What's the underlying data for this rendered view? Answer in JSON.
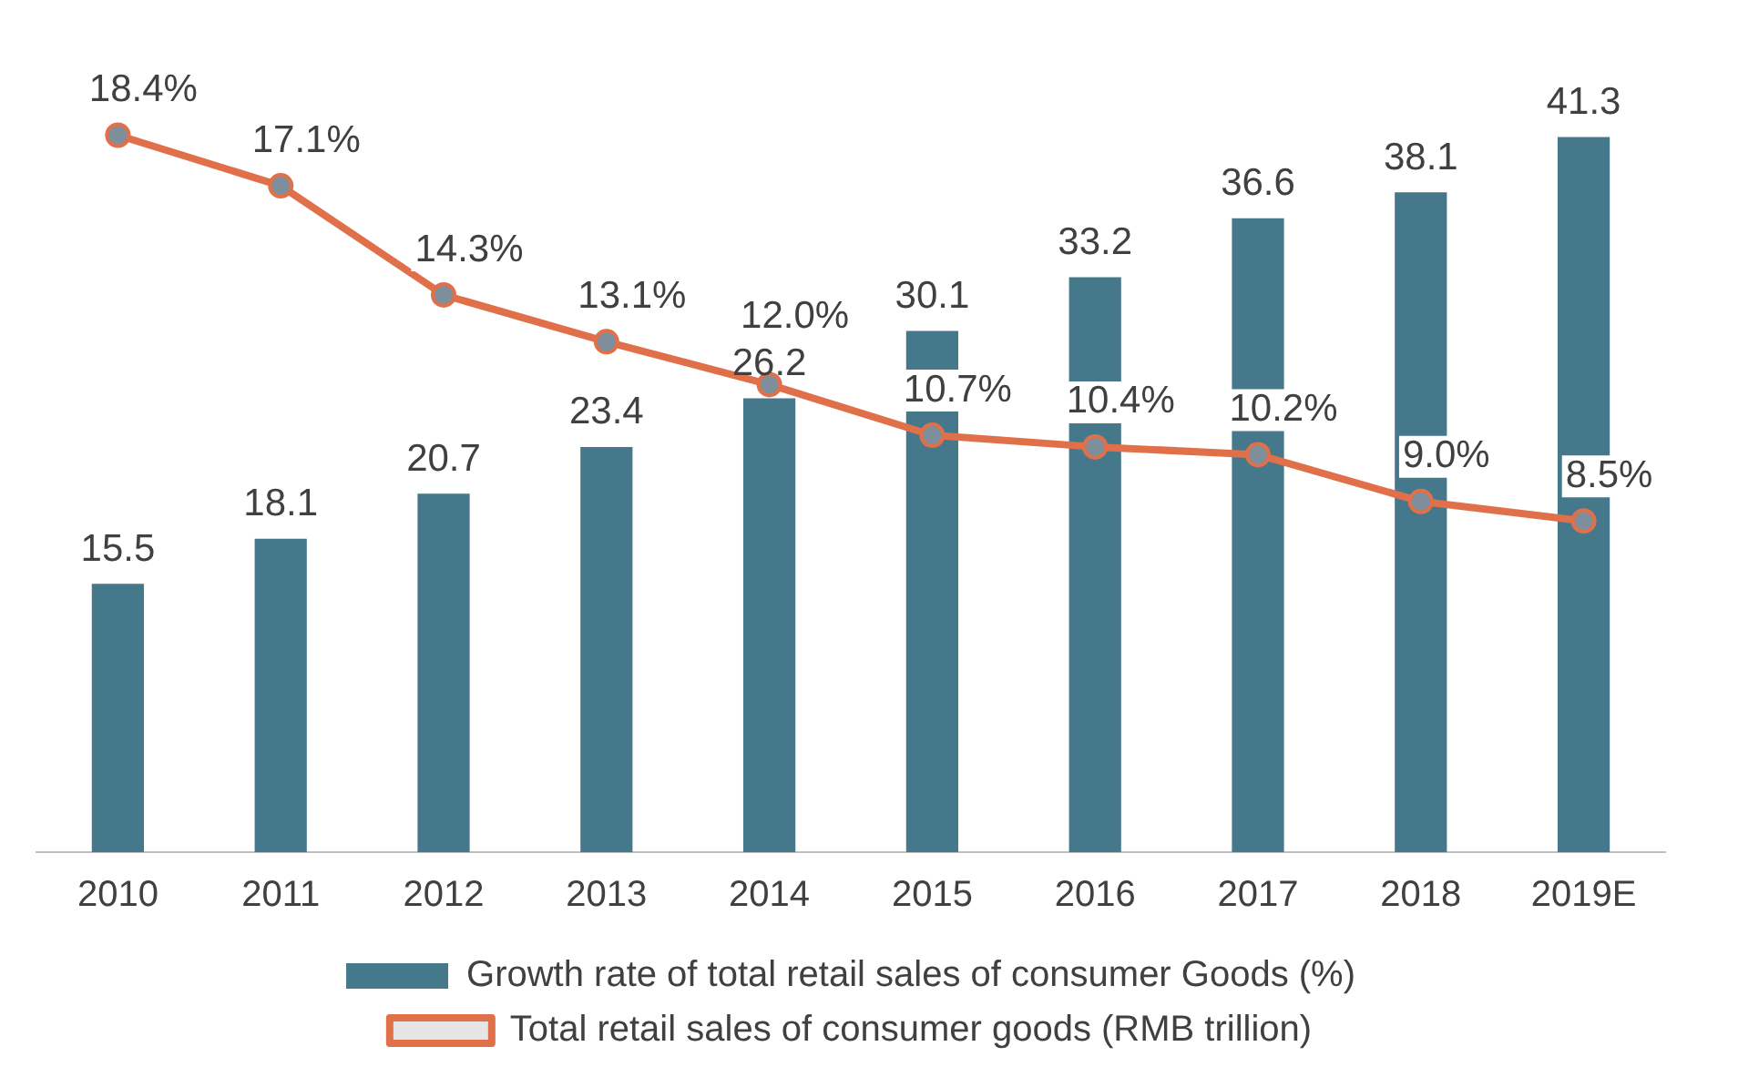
{
  "chart_data": {
    "type": "bar",
    "categories": [
      "2010",
      "2011",
      "2012",
      "2013",
      "2014",
      "2015",
      "2016",
      "2017",
      "2018",
      "2019E"
    ],
    "series": [
      {
        "name": "Growth rate of total retail sales of consumer Goods (%)",
        "color": "#46788c",
        "values": [
          15.5,
          18.1,
          20.7,
          23.4,
          26.2,
          30.1,
          33.2,
          36.6,
          38.1,
          41.3
        ],
        "value_labels": [
          "15.5",
          "18.1",
          "20.7",
          "23.4",
          "26.2",
          "30.1",
          "33.2",
          "36.6",
          "38.1",
          "41.3"
        ]
      },
      {
        "name": "Total retail sales of consumer goods (RMB trillion)",
        "type": "line",
        "axis": "y2",
        "color": "#e0704a",
        "values": [
          18.4,
          17.1,
          14.3,
          13.1,
          12.0,
          10.7,
          10.4,
          10.2,
          9.0,
          8.5
        ],
        "value_labels": [
          "18.4%",
          "17.1%",
          "14.3%",
          "13.1%",
          "12.0%",
          "10.7%",
          "10.4%",
          "10.2%",
          "9.0%",
          "8.5%"
        ]
      }
    ],
    "grid": false,
    "legend": "bottom",
    "marker": "circle",
    "line_style": "solid"
  }
}
